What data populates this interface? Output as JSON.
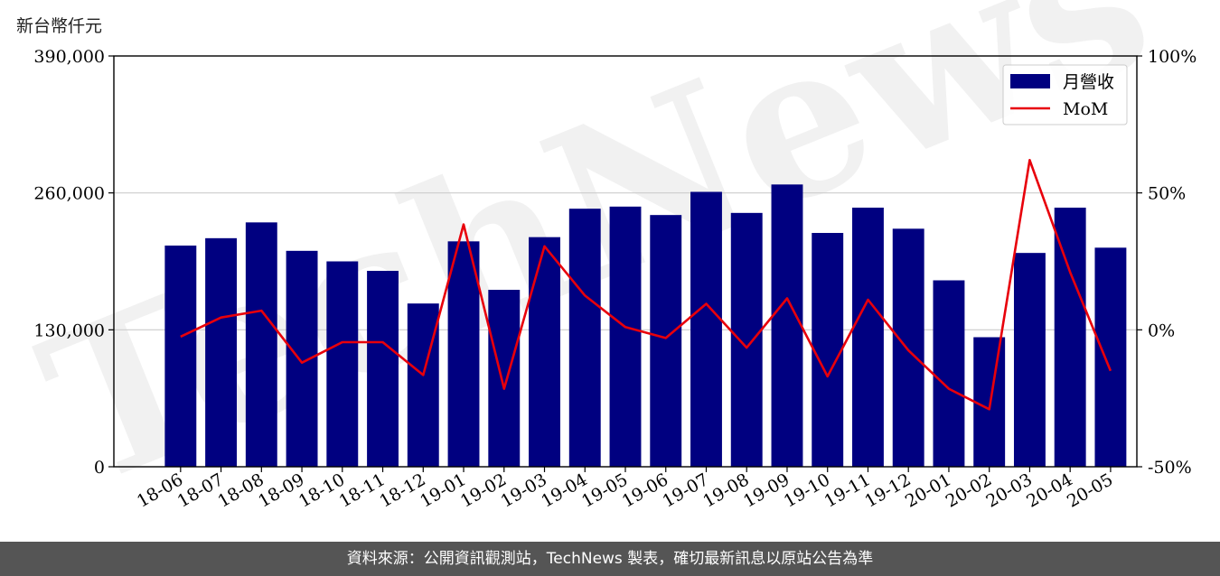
{
  "unit_label": "新台幣仟元",
  "footer_text": "資料來源：公開資訊觀測站，TechNews 製表，確切最新訊息以原站公告為準",
  "watermark": "TechNews",
  "colors": {
    "bar": "#000080",
    "line": "#e8000b",
    "grid": "#cccccc",
    "footer_bg": "#555555"
  },
  "chart_data": {
    "type": "bar",
    "categories": [
      "18-06",
      "18-07",
      "18-08",
      "18-09",
      "18-10",
      "18-11",
      "18-12",
      "19-01",
      "19-02",
      "19-03",
      "19-04",
      "19-05",
      "19-06",
      "19-07",
      "19-08",
      "19-09",
      "19-10",
      "19-11",
      "19-12",
      "20-01",
      "20-02",
      "20-03",
      "20-04",
      "20-05"
    ],
    "series": [
      {
        "name": "月營收",
        "type": "bar",
        "axis": "left",
        "values": [
          210000,
          217000,
          232000,
          205000,
          195000,
          186000,
          155000,
          214000,
          168000,
          218000,
          245000,
          247000,
          239000,
          261000,
          241000,
          268000,
          222000,
          246000,
          226000,
          177000,
          123000,
          203000,
          246000,
          208000
        ]
      },
      {
        "name": "MoM",
        "type": "line",
        "axis": "right",
        "values": [
          -2.5,
          4.5,
          7,
          -12,
          -4.5,
          -4.5,
          -16.5,
          38.5,
          -21.5,
          30.5,
          12.5,
          1,
          -3,
          9.5,
          -6.5,
          11.5,
          -17,
          11,
          -7.5,
          -21.5,
          -29,
          62,
          21,
          -15
        ]
      }
    ],
    "y_left": {
      "ylim": [
        0,
        390000
      ],
      "ticks": [
        0,
        130000,
        260000,
        390000
      ],
      "tick_labels": [
        "0",
        "130,000",
        "260,000",
        "390,000"
      ]
    },
    "y_right": {
      "ylim": [
        -50,
        100
      ],
      "ticks": [
        -50,
        0,
        50,
        100
      ],
      "tick_labels": [
        "-50%",
        "0%",
        "50%",
        "100%"
      ]
    },
    "grid": "horizontal",
    "legend": "top-right"
  }
}
